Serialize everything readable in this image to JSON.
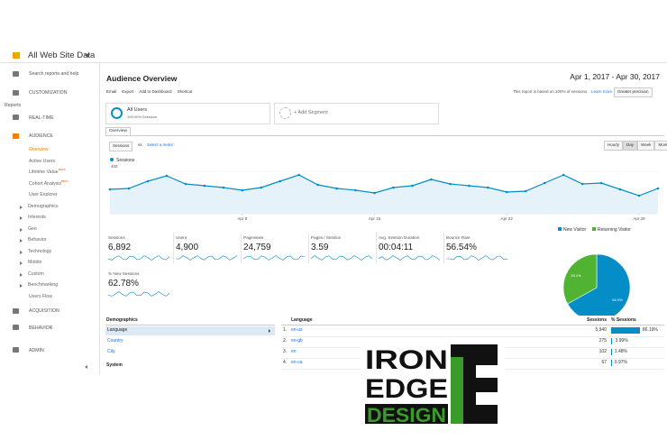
{
  "header": {
    "property": "All Web Site Data",
    "search": "Search reports and help"
  },
  "sidebar": {
    "customization": "CUSTOMIZATION",
    "reports": "Reports",
    "realtime": "REAL-TIME",
    "audience": "AUDIENCE",
    "audience_items": [
      "Overview",
      "Active Users",
      "Lifetime Value",
      "Cohort Analysis",
      "User Explorer",
      "Demographics",
      "Interests",
      "Geo",
      "Behavior",
      "Technology",
      "Mobile",
      "Custom",
      "Benchmarking",
      "Users Flow"
    ],
    "beta": "BETA",
    "acquisition": "ACQUISITION",
    "behavior": "BEHAVIOR",
    "admin": "ADMIN"
  },
  "report": {
    "title": "Audience Overview",
    "date_range": "Apr 1, 2017 - Apr 30, 2017",
    "toolbar": [
      "Email",
      "Export",
      "Add to Dashboard",
      "Shortcut"
    ],
    "sampling": "This report is based on 100% of sessions.",
    "learn_more": "Learn more",
    "precision": "Greater precision",
    "segment": {
      "name": "All Users",
      "detail": "100.00% Sessions",
      "add": "+ Add Segment"
    },
    "tab": "Overview",
    "metric_select": "Sessions",
    "vs": "vs.",
    "select_metric": "Select a metric",
    "granularity": [
      "Hourly",
      "Day",
      "Week",
      "Month"
    ]
  },
  "chart_data": [
    {
      "type": "line",
      "series": [
        {
          "name": "Sessions",
          "color": "#058dc7",
          "values": [
            216,
            224,
            288,
            336,
            264,
            248,
            232,
            208,
            232,
            288,
            344,
            256,
            224,
            208,
            184,
            232,
            248,
            304,
            264,
            248,
            232,
            192,
            200,
            272,
            344,
            264,
            272,
            216,
            160,
            224
          ]
        }
      ],
      "ylim": [
        0,
        400
      ],
      "yticks": [
        400
      ],
      "xticks": [
        {
          "value": 7,
          "label": "Apr 8"
        },
        {
          "value": 14,
          "label": "Apr 15"
        },
        {
          "value": 21,
          "label": "Apr 22"
        },
        {
          "value": 28,
          "label": "Apr 29"
        }
      ]
    },
    {
      "type": "pie",
      "categories": [
        "New Visitor",
        "Returning Visitor"
      ],
      "values": [
        66.9,
        33.1
      ],
      "value_labels": [
        "66.9%",
        "33.1%"
      ],
      "colors": [
        "#058dc7",
        "#50b432"
      ]
    }
  ],
  "metrics": [
    {
      "label": "Sessions",
      "value": "6,892"
    },
    {
      "label": "Users",
      "value": "4,900"
    },
    {
      "label": "Pageviews",
      "value": "24,759"
    },
    {
      "label": "Pages / Session",
      "value": "3.59"
    },
    {
      "label": "Avg. Session Duration",
      "value": "00:04:11"
    },
    {
      "label": "Bounce Rate",
      "value": "56.54%"
    },
    {
      "label": "% New Sessions",
      "value": "62.78%"
    }
  ],
  "table": {
    "left_header": "Demographics",
    "left_items": [
      "Language",
      "Country",
      "City"
    ],
    "system": "System",
    "headers": [
      "Language",
      "Sessions",
      "% Sessions"
    ],
    "rows": [
      {
        "rank": "1.",
        "language": "en-us",
        "sessions": "5,940",
        "share": 86.19,
        "share_label": "86.19%"
      },
      {
        "rank": "2.",
        "language": "en-gb",
        "sessions": "275",
        "share": 3.99,
        "share_label": "3.99%"
      },
      {
        "rank": "3.",
        "language": "en",
        "sessions": "102",
        "share": 1.48,
        "share_label": "1.48%"
      },
      {
        "rank": "4.",
        "language": "en-ca",
        "sessions": "67",
        "share": 0.97,
        "share_label": "0.97%"
      }
    ]
  },
  "logo": {
    "line1": "IRON",
    "line2": "EDGE",
    "line3": "DESIGN"
  }
}
